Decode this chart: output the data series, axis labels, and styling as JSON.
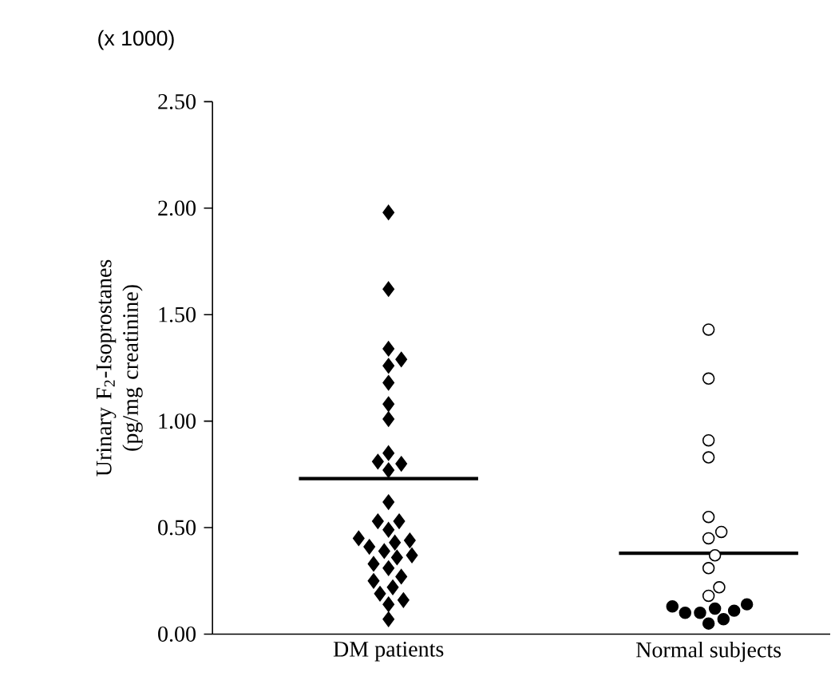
{
  "chart_data": {
    "type": "scatter",
    "ylabel": "Urinary F$_{2}$-Isoprostanes (pg/mg creatinine)",
    "annotations": [
      "(x 1000)"
    ],
    "categories": [
      "DM patients",
      "Normal subjects"
    ],
    "ylim": [
      0,
      2.5
    ],
    "yticks": [
      {
        "value": 0,
        "label": "0.00"
      },
      {
        "value": 0.5,
        "label": "0.50"
      },
      {
        "value": 1,
        "label": "1.00"
      },
      {
        "value": 1.5,
        "label": "1.50"
      },
      {
        "value": 2,
        "label": "2.00"
      },
      {
        "value": 2.5,
        "label": "2.50"
      }
    ],
    "series": [
      {
        "marker": "diamond",
        "color": "#000000",
        "x": [
          "DM patients",
          "DM patients",
          "DM patients",
          "DM patients",
          "DM patients",
          "DM patients",
          "DM patients",
          "DM patients",
          "DM patients",
          "DM patients",
          "DM patients",
          "DM patients",
          "DM patients",
          "DM patients",
          "DM patients",
          "DM patients",
          "DM patients",
          "DM patients",
          "DM patients",
          "DM patients",
          "DM patients",
          "DM patients",
          "DM patients",
          "DM patients",
          "DM patients",
          "DM patients",
          "DM patients",
          "DM patients",
          "DM patients",
          "DM patients",
          "DM patients",
          "DM patients"
        ],
        "values": [
          1.98,
          1.62,
          1.34,
          1.29,
          1.26,
          1.18,
          1.08,
          1.01,
          0.85,
          0.8,
          0.81,
          0.77,
          0.62,
          0.53,
          0.53,
          0.49,
          0.43,
          0.44,
          0.45,
          0.41,
          0.39,
          0.36,
          0.37,
          0.33,
          0.31,
          0.25,
          0.27,
          0.22,
          0.19,
          0.14,
          0.16,
          0.07
        ]
      },
      {
        "marker": "circle",
        "color": "#ffffff",
        "x": [
          "Normal subjects",
          "Normal subjects",
          "Normal subjects",
          "Normal subjects",
          "Normal subjects",
          "Normal subjects",
          "Normal subjects",
          "Normal subjects",
          "Normal subjects",
          "Normal subjects",
          "Normal subjects"
        ],
        "values": [
          1.43,
          1.2,
          0.91,
          0.83,
          0.55,
          0.48,
          0.45,
          0.37,
          0.31,
          0.22,
          0.18
        ]
      },
      {
        "marker": "circle",
        "color": "#000000",
        "x": [
          "Normal subjects",
          "Normal subjects",
          "Normal subjects",
          "Normal subjects",
          "Normal subjects",
          "Normal subjects",
          "Normal subjects",
          "Normal subjects"
        ],
        "values": [
          0.14,
          0.07,
          0.1,
          0.1,
          0.13,
          0.05,
          0.11,
          0.12
        ]
      }
    ],
    "ref_lines": [
      {
        "axis": "y",
        "value": 0.73,
        "color": "#000000",
        "line_style": "solid"
      },
      {
        "axis": "y",
        "value": 0.38,
        "color": "#000000",
        "line_style": "solid"
      }
    ]
  }
}
